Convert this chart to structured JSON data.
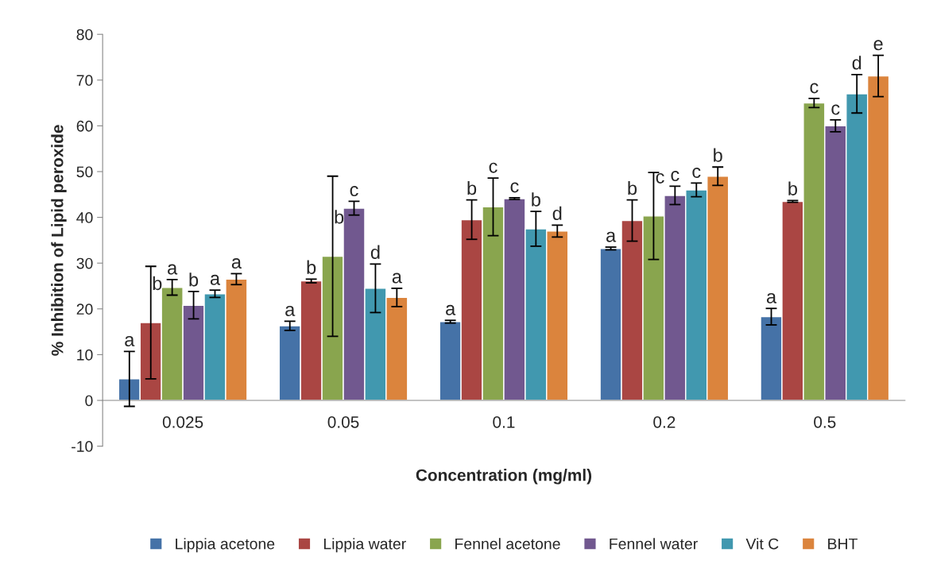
{
  "chart_data": {
    "type": "bar",
    "xlabel": "Concentration (mg/ml)",
    "ylabel": "% Inhibition of Lipid peroxide",
    "categories": [
      "0.025",
      "0.05",
      "0.1",
      "0.2",
      "0.5"
    ],
    "series": [
      {
        "name": "Lippia acetone",
        "color": "#4572a7",
        "values": [
          4.7,
          16.3,
          17.2,
          33.2,
          18.3
        ],
        "errors": [
          6,
          1,
          0.3,
          0.3,
          1.8
        ],
        "value_labels": [
          "a",
          "a",
          "a",
          "a",
          "a"
        ]
      },
      {
        "name": "Lippia water",
        "color": "#aa4643",
        "values": [
          17,
          26.1,
          39.5,
          39.3,
          43.5
        ],
        "errors": [
          12.3,
          0.4,
          4.3,
          4.5,
          0.2
        ],
        "value_labels": [
          "b",
          "b",
          "b",
          "b",
          "b"
        ]
      },
      {
        "name": "Fennel acetone",
        "color": "#89a54e",
        "values": [
          24.7,
          31.5,
          42.3,
          40.3,
          65
        ],
        "errors": [
          1.7,
          17.5,
          6.3,
          9.5,
          1
        ],
        "value_labels": [
          "a",
          "b",
          "c",
          "c",
          "c"
        ]
      },
      {
        "name": "Fennel water",
        "color": "#71588f",
        "values": [
          20.8,
          42,
          44.1,
          44.8,
          60
        ],
        "errors": [
          3,
          1.5,
          0.2,
          2,
          1.3
        ],
        "value_labels": [
          "b",
          "c",
          "c",
          "c",
          "c"
        ]
      },
      {
        "name": "Vit C",
        "color": "#4198af",
        "values": [
          23.3,
          24.5,
          37.5,
          46,
          67
        ],
        "errors": [
          0.8,
          5.3,
          3.8,
          1.5,
          4.2
        ],
        "value_labels": [
          "a",
          "d",
          "b",
          "c",
          "d"
        ]
      },
      {
        "name": "BHT",
        "color": "#db843d",
        "values": [
          26.5,
          22.5,
          37,
          49,
          70.9
        ],
        "errors": [
          1.2,
          2,
          1.3,
          2,
          4.5
        ],
        "value_labels": [
          "a",
          "a",
          "d",
          "b",
          "e"
        ]
      }
    ],
    "ylim": [
      -10,
      80
    ],
    "yticks": [
      -10,
      0,
      10,
      20,
      30,
      40,
      50,
      60,
      70,
      80
    ],
    "legend": "bottom"
  }
}
